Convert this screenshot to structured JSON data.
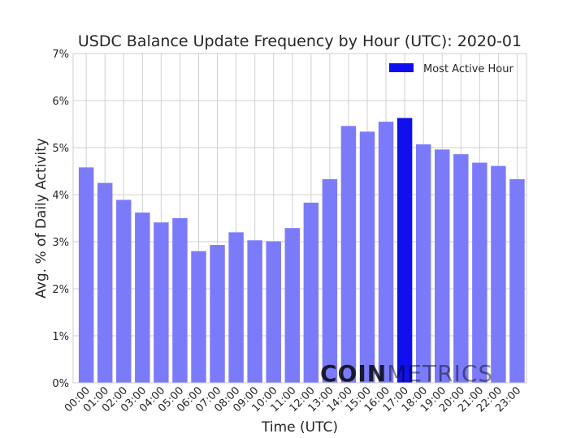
{
  "chart_data": {
    "type": "bar",
    "title": "USDC Balance Update Frequency by Hour (UTC): 2020-01",
    "xlabel": "Time (UTC)",
    "ylabel": "Avg. % of Daily Activity",
    "categories": [
      "00:00",
      "01:00",
      "02:00",
      "03:00",
      "04:00",
      "05:00",
      "06:00",
      "07:00",
      "08:00",
      "09:00",
      "10:00",
      "11:00",
      "12:00",
      "13:00",
      "14:00",
      "15:00",
      "16:00",
      "17:00",
      "18:00",
      "19:00",
      "20:00",
      "21:00",
      "22:00",
      "23:00"
    ],
    "values": [
      4.58,
      4.25,
      3.89,
      3.62,
      3.41,
      3.5,
      2.8,
      2.93,
      3.2,
      3.03,
      3.01,
      3.29,
      3.83,
      4.33,
      5.46,
      5.34,
      5.55,
      5.63,
      5.07,
      4.96,
      4.86,
      4.68,
      4.61,
      4.33
    ],
    "highlight_index": 17,
    "ylim": [
      0,
      7
    ],
    "yticks": [
      0,
      1,
      2,
      3,
      4,
      5,
      6,
      7
    ],
    "ytick_labels": [
      "0%",
      "1%",
      "2%",
      "3%",
      "4%",
      "5%",
      "6%",
      "7%"
    ],
    "legend": {
      "label": "Most Active Hour",
      "placement": "top-right"
    },
    "grid": true,
    "colors": {
      "bar": "#7b7bfa",
      "highlight": "#1010ee",
      "grid": "#d0d0d0",
      "frame": "#cccccc"
    }
  },
  "watermark": {
    "bold": "COIN",
    "light": "METRICS"
  }
}
